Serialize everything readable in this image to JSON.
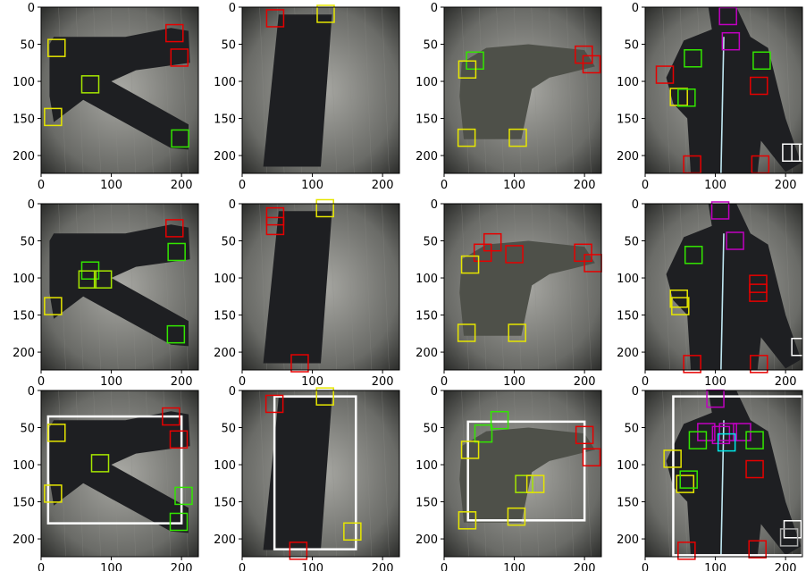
{
  "figure": {
    "grid": {
      "rows": 3,
      "cols": 4
    }
  },
  "chart_data": [
    {
      "type": "image",
      "panel": "r1c1",
      "content": "black trousers laid flat",
      "xlim": [
        0,
        224
      ],
      "ylim": [
        224,
        0
      ],
      "xticks": [
        0,
        100,
        200
      ],
      "yticks": [
        0,
        50,
        100,
        150,
        200
      ],
      "boxes": [
        {
          "cx": 22,
          "cy": 55,
          "color": "#e6e600"
        },
        {
          "cx": 70,
          "cy": 104,
          "color": "#a6e600"
        },
        {
          "cx": 17,
          "cy": 148,
          "color": "#e6e600"
        },
        {
          "cx": 190,
          "cy": 35,
          "color": "#e60000"
        },
        {
          "cx": 197,
          "cy": 68,
          "color": "#e60000"
        },
        {
          "cx": 198,
          "cy": 177,
          "color": "#33e600"
        }
      ]
    },
    {
      "type": "image",
      "panel": "r1c2",
      "content": "black garment laid diagonally",
      "xlim": [
        0,
        224
      ],
      "ylim": [
        224,
        0
      ],
      "xticks": [
        0,
        100,
        200
      ],
      "yticks": [
        0,
        50,
        100,
        150,
        200
      ],
      "boxes": [
        {
          "cx": 47,
          "cy": 15,
          "color": "#e60000"
        },
        {
          "cx": 119,
          "cy": 9,
          "color": "#e6e600"
        }
      ]
    },
    {
      "type": "image",
      "panel": "r1c3",
      "content": "gray jacket laid flat",
      "xlim": [
        0,
        224
      ],
      "ylim": [
        224,
        0
      ],
      "xticks": [
        0,
        100,
        200
      ],
      "yticks": [
        0,
        50,
        100,
        150,
        200
      ],
      "boxes": [
        {
          "cx": 44,
          "cy": 72,
          "color": "#33e600"
        },
        {
          "cx": 33,
          "cy": 84,
          "color": "#e6e600"
        },
        {
          "cx": 32,
          "cy": 176,
          "color": "#e6e600"
        },
        {
          "cx": 105,
          "cy": 176,
          "color": "#e6e600"
        },
        {
          "cx": 199,
          "cy": 64,
          "color": "#e60000"
        },
        {
          "cx": 210,
          "cy": 77,
          "color": "#e60000"
        }
      ]
    },
    {
      "type": "image",
      "panel": "r1c4",
      "content": "black jacket with zipper",
      "xlim": [
        0,
        224
      ],
      "ylim": [
        224,
        0
      ],
      "xticks": [
        0,
        100,
        200
      ],
      "yticks": [
        0,
        50,
        100,
        150,
        200
      ],
      "boxes": [
        {
          "cx": 118,
          "cy": 12,
          "color": "#c000c0"
        },
        {
          "cx": 122,
          "cy": 46,
          "color": "#c000c0"
        },
        {
          "cx": 28,
          "cy": 91,
          "color": "#e60000"
        },
        {
          "cx": 68,
          "cy": 69,
          "color": "#33e600"
        },
        {
          "cx": 166,
          "cy": 72,
          "color": "#33e600"
        },
        {
          "cx": 162,
          "cy": 106,
          "color": "#e60000"
        },
        {
          "cx": 48,
          "cy": 121,
          "color": "#e6e600"
        },
        {
          "cx": 59,
          "cy": 122,
          "color": "#33e600"
        },
        {
          "cx": 67,
          "cy": 212,
          "color": "#e60000"
        },
        {
          "cx": 164,
          "cy": 212,
          "color": "#e60000"
        },
        {
          "cx": 208,
          "cy": 196,
          "color": "#ffffff"
        },
        {
          "cx": 221,
          "cy": 196,
          "color": "#ffffff"
        }
      ]
    },
    {
      "type": "image",
      "panel": "r2c1",
      "content": "black trousers laid flat",
      "xlim": [
        0,
        224
      ],
      "ylim": [
        224,
        0
      ],
      "xticks": [
        0,
        100,
        200
      ],
      "yticks": [
        0,
        50,
        100,
        150,
        200
      ],
      "boxes": [
        {
          "cx": 190,
          "cy": 33,
          "color": "#e60000"
        },
        {
          "cx": 193,
          "cy": 65,
          "color": "#33e600"
        },
        {
          "cx": 192,
          "cy": 176,
          "color": "#33e600"
        },
        {
          "cx": 70,
          "cy": 90,
          "color": "#33e600"
        },
        {
          "cx": 66,
          "cy": 102,
          "color": "#a6e600"
        },
        {
          "cx": 88,
          "cy": 102,
          "color": "#a6e600"
        },
        {
          "cx": 17,
          "cy": 138,
          "color": "#e6e600"
        }
      ]
    },
    {
      "type": "image",
      "panel": "r2c2",
      "content": "black garment laid diagonally",
      "xlim": [
        0,
        224
      ],
      "ylim": [
        224,
        0
      ],
      "xticks": [
        0,
        100,
        200
      ],
      "yticks": [
        0,
        50,
        100,
        150,
        200
      ],
      "boxes": [
        {
          "cx": 47,
          "cy": 17,
          "color": "#e60000"
        },
        {
          "cx": 47,
          "cy": 30,
          "color": "#e60000"
        },
        {
          "cx": 118,
          "cy": 6,
          "color": "#e6e600"
        },
        {
          "cx": 82,
          "cy": 215,
          "color": "#e60000"
        }
      ]
    },
    {
      "type": "image",
      "panel": "r2c3",
      "content": "gray jacket laid flat",
      "xlim": [
        0,
        224
      ],
      "ylim": [
        224,
        0
      ],
      "xticks": [
        0,
        100,
        200
      ],
      "yticks": [
        0,
        50,
        100,
        150,
        200
      ],
      "boxes": [
        {
          "cx": 69,
          "cy": 52,
          "color": "#e60000"
        },
        {
          "cx": 55,
          "cy": 66,
          "color": "#e60000"
        },
        {
          "cx": 100,
          "cy": 68,
          "color": "#e60000"
        },
        {
          "cx": 37,
          "cy": 82,
          "color": "#e6e600"
        },
        {
          "cx": 198,
          "cy": 66,
          "color": "#e60000"
        },
        {
          "cx": 212,
          "cy": 80,
          "color": "#e60000"
        },
        {
          "cx": 32,
          "cy": 174,
          "color": "#e6e600"
        },
        {
          "cx": 104,
          "cy": 174,
          "color": "#e6e600"
        }
      ]
    },
    {
      "type": "image",
      "panel": "r2c4",
      "content": "black jacket with zipper",
      "xlim": [
        0,
        224
      ],
      "ylim": [
        224,
        0
      ],
      "xticks": [
        0,
        100,
        200
      ],
      "yticks": [
        0,
        50,
        100,
        150,
        200
      ],
      "boxes": [
        {
          "cx": 107,
          "cy": 9,
          "color": "#c000c0"
        },
        {
          "cx": 128,
          "cy": 50,
          "color": "#c000c0"
        },
        {
          "cx": 69,
          "cy": 69,
          "color": "#33e600"
        },
        {
          "cx": 161,
          "cy": 108,
          "color": "#e60000"
        },
        {
          "cx": 161,
          "cy": 120,
          "color": "#e60000"
        },
        {
          "cx": 48,
          "cy": 128,
          "color": "#e6e600"
        },
        {
          "cx": 50,
          "cy": 138,
          "color": "#e6e600"
        },
        {
          "cx": 221,
          "cy": 193,
          "color": "#ffffff"
        },
        {
          "cx": 67,
          "cy": 216,
          "color": "#e60000"
        },
        {
          "cx": 162,
          "cy": 216,
          "color": "#e60000"
        }
      ]
    },
    {
      "type": "image",
      "panel": "r3c1",
      "content": "black trousers laid flat",
      "xlim": [
        0,
        224
      ],
      "ylim": [
        224,
        0
      ],
      "xticks": [
        0,
        100,
        200
      ],
      "yticks": [
        0,
        50,
        100,
        150,
        200
      ],
      "frame": {
        "x0": 10,
        "y0": 35,
        "x1": 200,
        "y1": 179,
        "color": "#ffffff"
      },
      "boxes": [
        {
          "cx": 22,
          "cy": 57,
          "color": "#e6e600"
        },
        {
          "cx": 84,
          "cy": 98,
          "color": "#a6e600"
        },
        {
          "cx": 17,
          "cy": 139,
          "color": "#e6e600"
        },
        {
          "cx": 185,
          "cy": 35,
          "color": "#e60000"
        },
        {
          "cx": 196,
          "cy": 66,
          "color": "#e60000"
        },
        {
          "cx": 203,
          "cy": 142,
          "color": "#33e600"
        },
        {
          "cx": 196,
          "cy": 177,
          "color": "#33e600"
        }
      ]
    },
    {
      "type": "image",
      "panel": "r3c2",
      "content": "black garment laid diagonally",
      "xlim": [
        0,
        224
      ],
      "ylim": [
        224,
        0
      ],
      "xticks": [
        0,
        100,
        200
      ],
      "yticks": [
        0,
        50,
        100,
        150,
        200
      ],
      "frame": {
        "x0": 46,
        "y0": 8,
        "x1": 162,
        "y1": 214,
        "color": "#ffffff"
      },
      "boxes": [
        {
          "cx": 46,
          "cy": 18,
          "color": "#e60000"
        },
        {
          "cx": 118,
          "cy": 8,
          "color": "#e6e600"
        },
        {
          "cx": 157,
          "cy": 190,
          "color": "#e6e600"
        },
        {
          "cx": 80,
          "cy": 216,
          "color": "#e60000"
        }
      ]
    },
    {
      "type": "image",
      "panel": "r3c3",
      "content": "gray jacket laid flat",
      "xlim": [
        0,
        224
      ],
      "ylim": [
        224,
        0
      ],
      "xticks": [
        0,
        100,
        200
      ],
      "yticks": [
        0,
        50,
        100,
        150,
        200
      ],
      "frame": {
        "x0": 34,
        "y0": 42,
        "x1": 200,
        "y1": 175,
        "color": "#ffffff"
      },
      "boxes": [
        {
          "cx": 79,
          "cy": 40,
          "color": "#33e600"
        },
        {
          "cx": 56,
          "cy": 58,
          "color": "#33e600"
        },
        {
          "cx": 37,
          "cy": 80,
          "color": "#e6e600"
        },
        {
          "cx": 114,
          "cy": 126,
          "color": "#a6e600"
        },
        {
          "cx": 130,
          "cy": 126,
          "color": "#e6e600"
        },
        {
          "cx": 200,
          "cy": 60,
          "color": "#e60000"
        },
        {
          "cx": 210,
          "cy": 90,
          "color": "#e60000"
        },
        {
          "cx": 33,
          "cy": 175,
          "color": "#e6e600"
        },
        {
          "cx": 103,
          "cy": 170,
          "color": "#e6e600"
        }
      ]
    },
    {
      "type": "image",
      "panel": "r3c4",
      "content": "black jacket with zipper",
      "xlim": [
        0,
        224
      ],
      "ylim": [
        224,
        0
      ],
      "xticks": [
        0,
        100,
        200
      ],
      "yticks": [
        0,
        50,
        100,
        150,
        200
      ],
      "frame": {
        "x0": 40,
        "y0": 8,
        "x1": 224,
        "y1": 222,
        "color": "#ffffff"
      },
      "boxes": [
        {
          "cx": 100,
          "cy": 11,
          "color": "#c000c0"
        },
        {
          "cx": 87,
          "cy": 56,
          "color": "#c000c0"
        },
        {
          "cx": 108,
          "cy": 60,
          "color": "#c000c0"
        },
        {
          "cx": 118,
          "cy": 56,
          "color": "#c000c0"
        },
        {
          "cx": 138,
          "cy": 56,
          "color": "#c000c0"
        },
        {
          "cx": 75,
          "cy": 67,
          "color": "#33e600"
        },
        {
          "cx": 156,
          "cy": 67,
          "color": "#33e600"
        },
        {
          "cx": 116,
          "cy": 70,
          "color": "#00e6e6"
        },
        {
          "cx": 39,
          "cy": 92,
          "color": "#e6e600"
        },
        {
          "cx": 57,
          "cy": 126,
          "color": "#e6e600"
        },
        {
          "cx": 62,
          "cy": 120,
          "color": "#33e600"
        },
        {
          "cx": 156,
          "cy": 106,
          "color": "#e60000"
        },
        {
          "cx": 210,
          "cy": 187,
          "color": "#ffffff"
        },
        {
          "cx": 205,
          "cy": 198,
          "color": "#aaaaaa"
        },
        {
          "cx": 59,
          "cy": 216,
          "color": "#e60000"
        },
        {
          "cx": 160,
          "cy": 214,
          "color": "#e60000"
        }
      ]
    }
  ]
}
